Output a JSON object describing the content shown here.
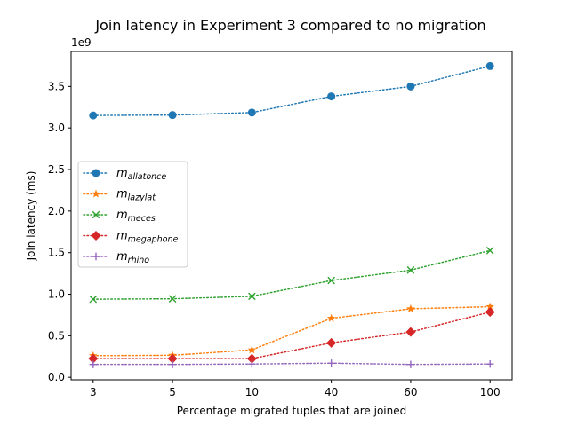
{
  "chart_data": {
    "type": "line",
    "title": "Join latency in Experiment 3 compared to no migration",
    "xlabel": "Percentage migrated tuples that are joined",
    "ylabel": "Join latency (ms)",
    "y_offset_label": "1e9",
    "categories": [
      "3",
      "5",
      "10",
      "40",
      "60",
      "100"
    ],
    "ylim": [
      -0.03,
      3.92
    ],
    "yticks": [
      0.0,
      0.5,
      1.0,
      1.5,
      2.0,
      2.5,
      3.0,
      3.5
    ],
    "ytick_labels": [
      "0.0",
      "0.5",
      "1.0",
      "1.5",
      "2.0",
      "2.5",
      "3.0",
      "3.5"
    ],
    "grid": false,
    "legend_position": "center-left",
    "series": [
      {
        "name": "m",
        "subscript": "allatonce",
        "color": "#1f77b4",
        "marker": "circle",
        "values": [
          3.15,
          3.155,
          3.185,
          3.38,
          3.5,
          3.745
        ]
      },
      {
        "name": "m",
        "subscript": "lazylat",
        "color": "#ff7f0e",
        "marker": "star",
        "values": [
          0.26,
          0.265,
          0.33,
          0.71,
          0.825,
          0.85
        ]
      },
      {
        "name": "m",
        "subscript": "meces",
        "color": "#2ca02c",
        "marker": "x",
        "values": [
          0.94,
          0.945,
          0.975,
          1.165,
          1.29,
          1.525
        ]
      },
      {
        "name": "m",
        "subscript": "megaphone",
        "color": "#d62728",
        "marker": "diamond",
        "values": [
          0.225,
          0.225,
          0.225,
          0.415,
          0.545,
          0.785
        ]
      },
      {
        "name": "m",
        "subscript": "rhino",
        "color": "#9467bd",
        "marker": "plus",
        "values": [
          0.155,
          0.155,
          0.16,
          0.17,
          0.155,
          0.16
        ]
      }
    ]
  }
}
